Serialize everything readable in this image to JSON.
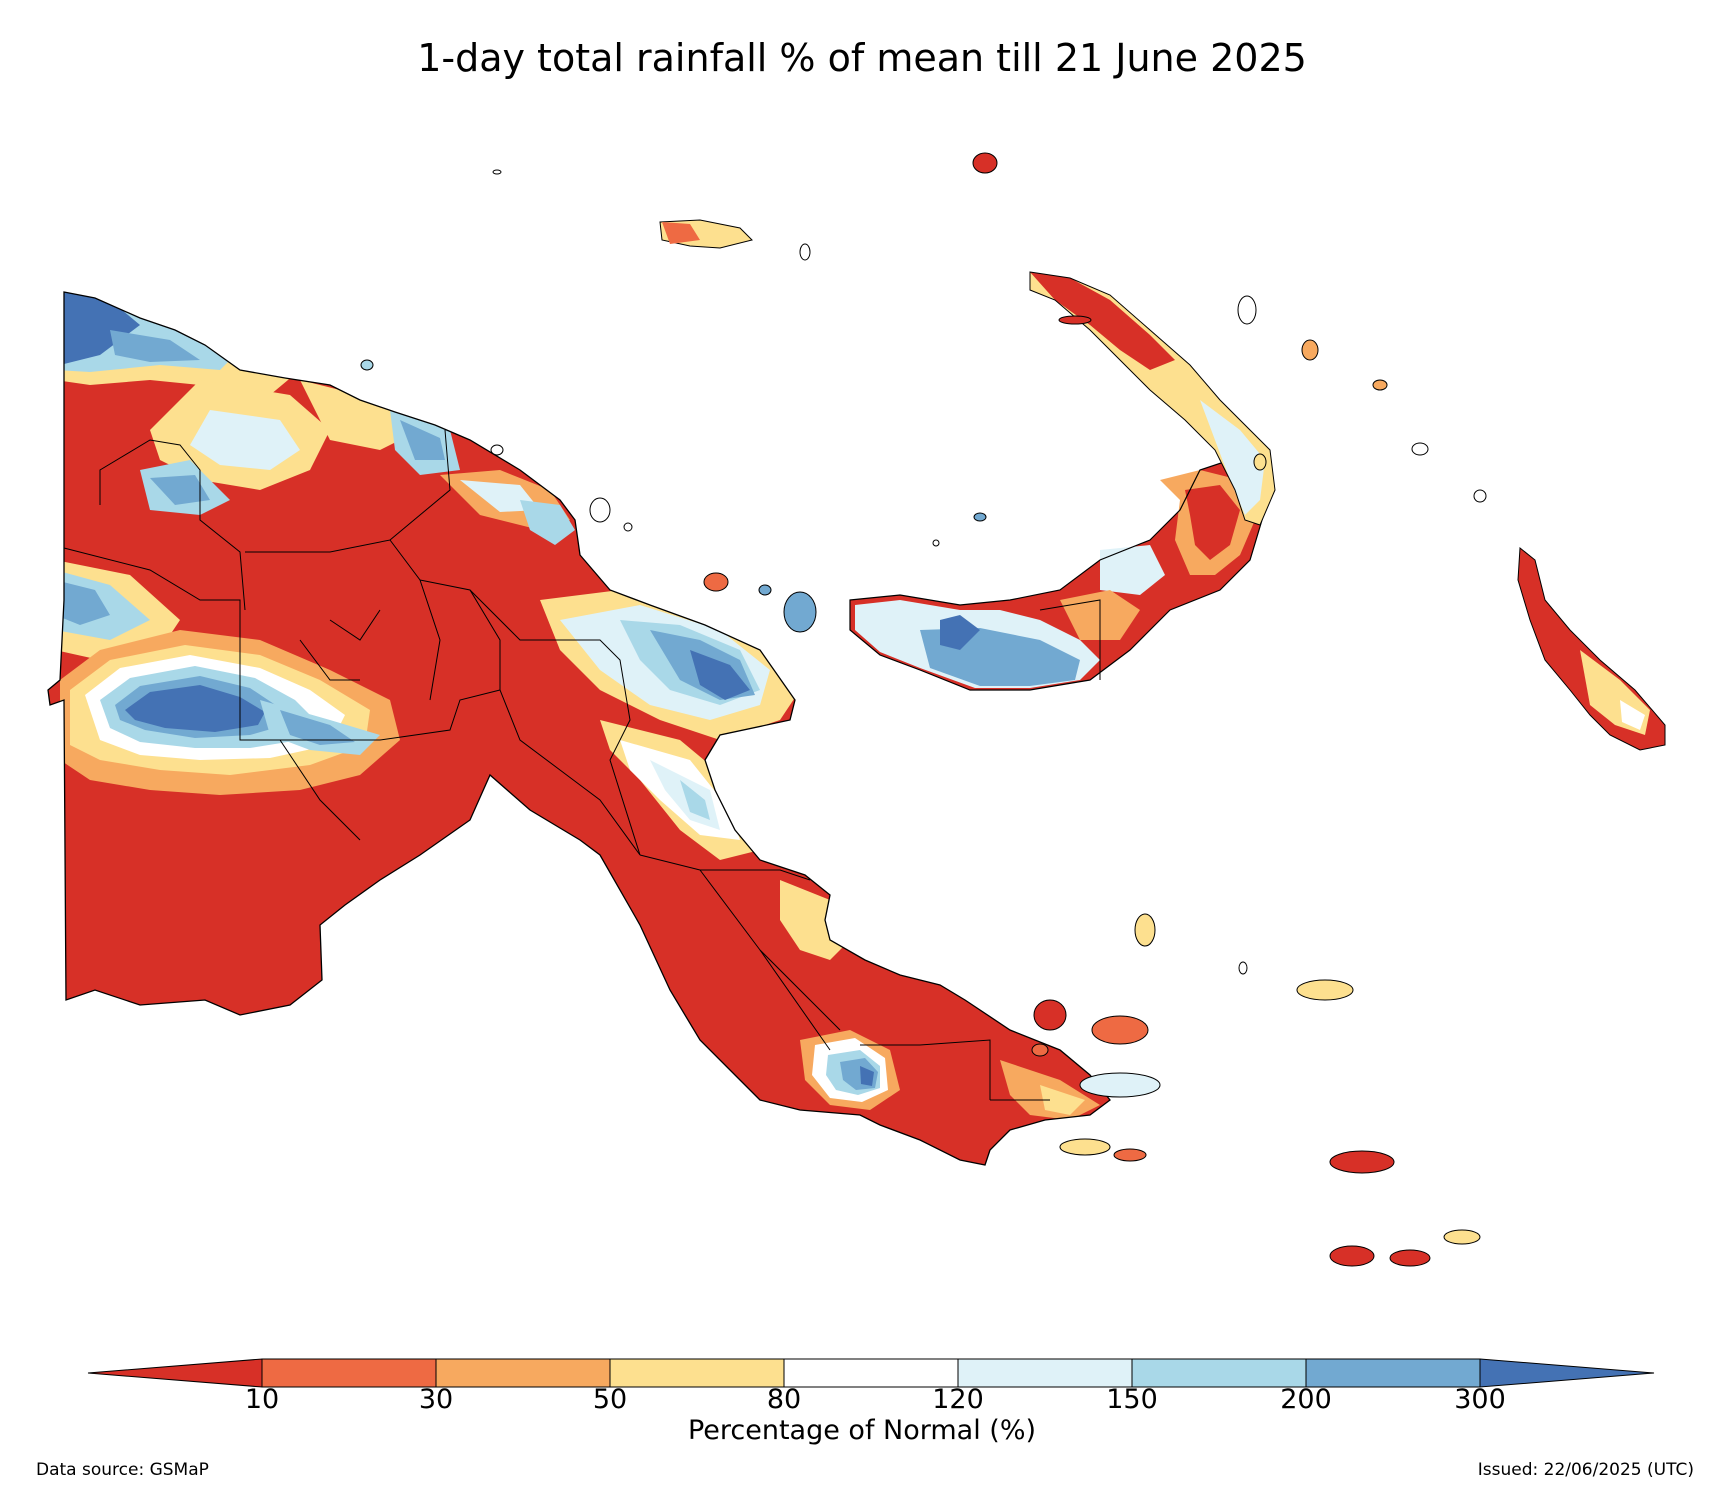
{
  "title": "1-day total rainfall % of mean till 21 June 2025",
  "colorbar": {
    "label": "Percentage of Normal (%)",
    "ticks": [
      "10",
      "30",
      "50",
      "80",
      "120",
      "150",
      "200",
      "300"
    ],
    "bins": [
      {
        "range": "<10",
        "color": "#d73027"
      },
      {
        "range": "10-30",
        "color": "#ee6a43"
      },
      {
        "range": "30-50",
        "color": "#f7a95f"
      },
      {
        "range": "50-80",
        "color": "#fde08f"
      },
      {
        "range": "80-120",
        "color": "#ffffff"
      },
      {
        "range": "120-150",
        "color": "#dff2f8"
      },
      {
        "range": "150-200",
        "color": "#a9d8e8"
      },
      {
        "range": "200-300",
        "color": "#72a9d1"
      },
      {
        "range": ">300",
        "color": "#4472b4"
      }
    ]
  },
  "footer": {
    "source": "Data source: GSMaP",
    "issued": "Issued: 22/06/2025 (UTC)"
  }
}
